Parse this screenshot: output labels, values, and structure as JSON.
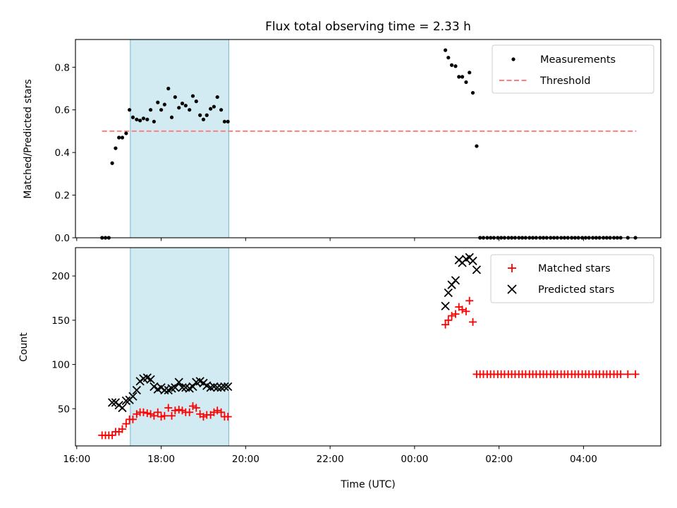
{
  "chart_data": {
    "title": "Flux total observing time = 2.33 h",
    "xlabel": "Time (UTC)",
    "x_ticks": [
      "16:00",
      "18:00",
      "20:00",
      "22:00",
      "00:00",
      "02:00",
      "04:00"
    ],
    "x_tick_hours": [
      16,
      18,
      20,
      22,
      24,
      26,
      28
    ],
    "xlim_hours": [
      15.97,
      29.83
    ],
    "highlight_span_hours": [
      17.27,
      19.6
    ],
    "colors": {
      "measurements": "#000000",
      "threshold": "#ff7f7f",
      "matched": "#ff0000",
      "predicted": "#000000",
      "span_fill": "#add8e6",
      "span_edge": "#6fb6d4"
    },
    "panels": [
      {
        "type": "scatter",
        "ylabel": "Matched/Predicted stars",
        "ylim": [
          0,
          0.93
        ],
        "y_ticks": [
          0.0,
          0.2,
          0.4,
          0.6,
          0.8
        ],
        "y_tick_labels": [
          "0.0",
          "0.2",
          "0.4",
          "0.6",
          "0.8"
        ],
        "legend": [
          "Measurements",
          "Threshold"
        ],
        "threshold": {
          "value": 0.5,
          "x_start": 16.6,
          "x_end": 29.25
        },
        "series": [
          {
            "name": "Measurements",
            "marker": "dot",
            "x": [
              16.6,
              16.68,
              16.76,
              16.84,
              16.92,
              17.0,
              17.08,
              17.17,
              17.25,
              17.33,
              17.42,
              17.5,
              17.58,
              17.67,
              17.75,
              17.83,
              17.92,
              18.0,
              18.08,
              18.17,
              18.25,
              18.33,
              18.42,
              18.5,
              18.58,
              18.67,
              18.75,
              18.83,
              18.92,
              19.0,
              19.08,
              19.17,
              19.25,
              19.33,
              19.42,
              19.5,
              19.58,
              24.73,
              24.8,
              24.88,
              24.97,
              25.05,
              25.13,
              25.22,
              25.3,
              25.38,
              25.47,
              25.55,
              25.63,
              25.72,
              25.8,
              25.88,
              25.97,
              26.05,
              26.13,
              26.22,
              26.3,
              26.38,
              26.47,
              26.55,
              26.63,
              26.72,
              26.8,
              26.88,
              26.97,
              27.05,
              27.13,
              27.22,
              27.3,
              27.38,
              27.47,
              27.55,
              27.63,
              27.72,
              27.8,
              27.88,
              27.97,
              28.05,
              28.13,
              28.22,
              28.3,
              28.38,
              28.47,
              28.55,
              28.63,
              28.72,
              28.8,
              28.88,
              29.05,
              29.23
            ],
            "y": [
              0.0,
              0.0,
              0.0,
              0.35,
              0.42,
              0.47,
              0.47,
              0.49,
              0.6,
              0.565,
              0.555,
              0.55,
              0.56,
              0.555,
              0.6,
              0.545,
              0.635,
              0.6,
              0.625,
              0.7,
              0.565,
              0.66,
              0.61,
              0.63,
              0.62,
              0.6,
              0.665,
              0.64,
              0.575,
              0.555,
              0.575,
              0.605,
              0.615,
              0.66,
              0.6,
              0.545,
              0.545,
              0.88,
              0.845,
              0.81,
              0.805,
              0.755,
              0.755,
              0.73,
              0.775,
              0.68,
              0.43,
              0.0,
              0.0,
              0.0,
              0.0,
              0.0,
              0.0,
              0.0,
              0.0,
              0.0,
              0.0,
              0.0,
              0.0,
              0.0,
              0.0,
              0.0,
              0.0,
              0.0,
              0.0,
              0.0,
              0.0,
              0.0,
              0.0,
              0.0,
              0.0,
              0.0,
              0.0,
              0.0,
              0.0,
              0.0,
              0.0,
              0.0,
              0.0,
              0.0,
              0.0,
              0.0,
              0.0,
              0.0,
              0.0,
              0.0,
              0.0,
              0.0,
              0.0,
              0.0
            ]
          }
        ]
      },
      {
        "type": "scatter",
        "ylabel": "Count",
        "ylim": [
          8,
          232
        ],
        "y_ticks": [
          50,
          100,
          150,
          200
        ],
        "y_tick_labels": [
          "50",
          "100",
          "150",
          "200"
        ],
        "legend": [
          "Matched stars",
          "Predicted stars"
        ],
        "series": [
          {
            "name": "Matched stars",
            "marker": "plus",
            "x": [
              16.6,
              16.68,
              16.76,
              16.84,
              16.92,
              17.0,
              17.08,
              17.17,
              17.25,
              17.33,
              17.42,
              17.5,
              17.58,
              17.67,
              17.75,
              17.83,
              17.92,
              18.0,
              18.08,
              18.17,
              18.25,
              18.33,
              18.42,
              18.5,
              18.58,
              18.67,
              18.75,
              18.83,
              18.92,
              19.0,
              19.08,
              19.17,
              19.25,
              19.33,
              19.42,
              19.5,
              19.58,
              24.73,
              24.8,
              24.88,
              24.97,
              25.05,
              25.13,
              25.22,
              25.3,
              25.38,
              25.47,
              25.55,
              25.63,
              25.72,
              25.8,
              25.88,
              25.97,
              26.05,
              26.13,
              26.22,
              26.3,
              26.38,
              26.47,
              26.55,
              26.63,
              26.72,
              26.8,
              26.88,
              26.97,
              27.05,
              27.13,
              27.22,
              27.3,
              27.38,
              27.47,
              27.55,
              27.63,
              27.72,
              27.8,
              27.88,
              27.97,
              28.05,
              28.13,
              28.22,
              28.3,
              28.38,
              28.47,
              28.55,
              28.63,
              28.72,
              28.8,
              28.88,
              29.05,
              29.23
            ],
            "y": [
              20,
              20,
              20,
              20,
              24,
              24,
              27,
              33,
              38,
              38,
              44,
              46,
              46,
              45,
              44,
              42,
              46,
              41,
              42,
              51,
              42,
              48,
              49,
              48,
              46,
              46,
              53,
              51,
              44,
              41,
              43,
              43,
              46,
              48,
              46,
              41,
              41,
              145,
              150,
              155,
              157,
              165,
              162,
              160,
              172,
              148,
              89,
              89,
              89,
              89,
              89,
              89,
              89,
              89,
              89,
              89,
              89,
              89,
              89,
              89,
              89,
              89,
              89,
              89,
              89,
              89,
              89,
              89,
              89,
              89,
              89,
              89,
              89,
              89,
              89,
              89,
              89,
              89,
              89,
              89,
              89,
              89,
              89,
              89,
              89,
              89,
              89,
              89,
              89,
              89
            ]
          },
          {
            "name": "Predicted stars",
            "marker": "x",
            "x": [
              16.84,
              16.92,
              17.0,
              17.08,
              17.17,
              17.25,
              17.33,
              17.42,
              17.5,
              17.58,
              17.67,
              17.75,
              17.83,
              17.92,
              18.0,
              18.08,
              18.17,
              18.25,
              18.33,
              18.42,
              18.5,
              18.58,
              18.67,
              18.75,
              18.83,
              18.92,
              19.0,
              19.08,
              19.17,
              19.25,
              19.33,
              19.42,
              19.5,
              19.58,
              24.73,
              24.8,
              24.88,
              24.97,
              25.05,
              25.13,
              25.22,
              25.3,
              25.38,
              25.47
            ],
            "y": [
              57,
              57,
              54,
              51,
              59,
              60,
              64,
              71,
              81,
              84,
              85,
              83,
              75,
              72,
              74,
              71,
              71,
              73,
              74,
              80,
              74,
              74,
              73,
              75,
              80,
              81,
              79,
              76,
              74,
              75,
              74,
              74,
              75,
              75,
              166,
              181,
              190,
              195,
              218,
              215,
              219,
              221,
              217,
              207
            ]
          }
        ]
      }
    ]
  }
}
